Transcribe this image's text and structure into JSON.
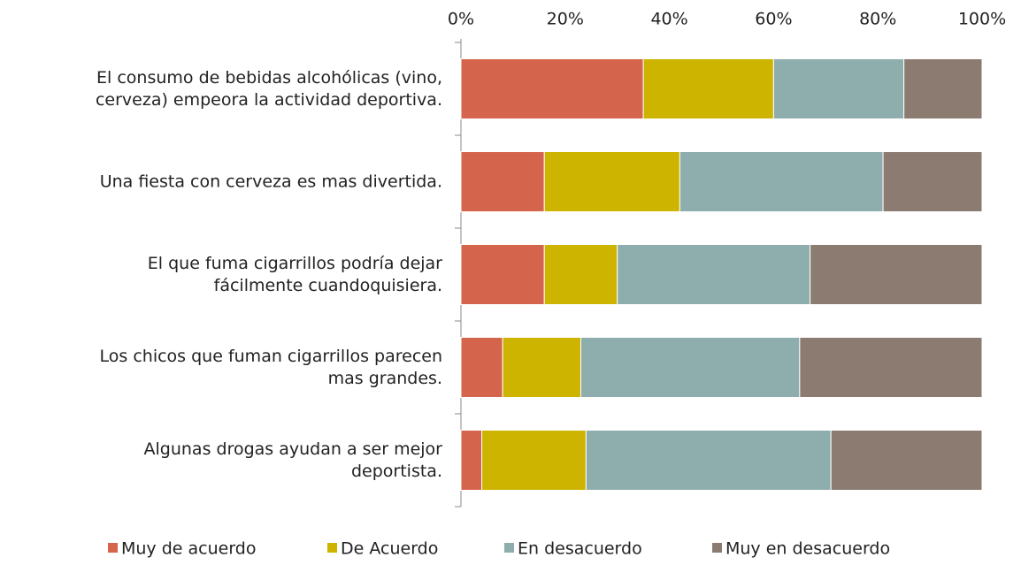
{
  "chart_data": {
    "type": "stacked-barh",
    "categories": [
      "El consumo de bebidas alcohólicas (vino,\ncerveza) empeora la actividad deportiva.",
      "Una fiesta con cerveza es mas divertida.",
      "El que fuma cigarrillos podría dejar\nfácilmente cuandoquisiera.",
      "Los chicos que fuman cigarrillos parecen\nmas grandes.",
      "Algunas drogas ayudan a ser mejor\ndeportista."
    ],
    "series": [
      {
        "name": "Muy de acuerdo",
        "color": "#d4644c",
        "values": [
          35,
          16,
          16,
          8,
          4
        ]
      },
      {
        "name": "De Acuerdo",
        "color": "#ccb400",
        "values": [
          25,
          26,
          14,
          15,
          20
        ]
      },
      {
        "name": "En desacuerdo",
        "color": "#8eadad",
        "values": [
          25,
          39,
          37,
          42,
          47
        ]
      },
      {
        "name": "Muy en desacuerdo",
        "color": "#8c7b70",
        "values": [
          15,
          19,
          33,
          35,
          29
        ]
      }
    ],
    "xlim": [
      0,
      100
    ],
    "xticks": [
      {
        "value": 0,
        "label": "0%"
      },
      {
        "value": 20,
        "label": "20%"
      },
      {
        "value": 40,
        "label": "40%"
      },
      {
        "value": 60,
        "label": "60%"
      },
      {
        "value": 80,
        "label": "80%"
      },
      {
        "value": 100,
        "label": "100%"
      }
    ],
    "grid": false,
    "legend": "bottom"
  }
}
